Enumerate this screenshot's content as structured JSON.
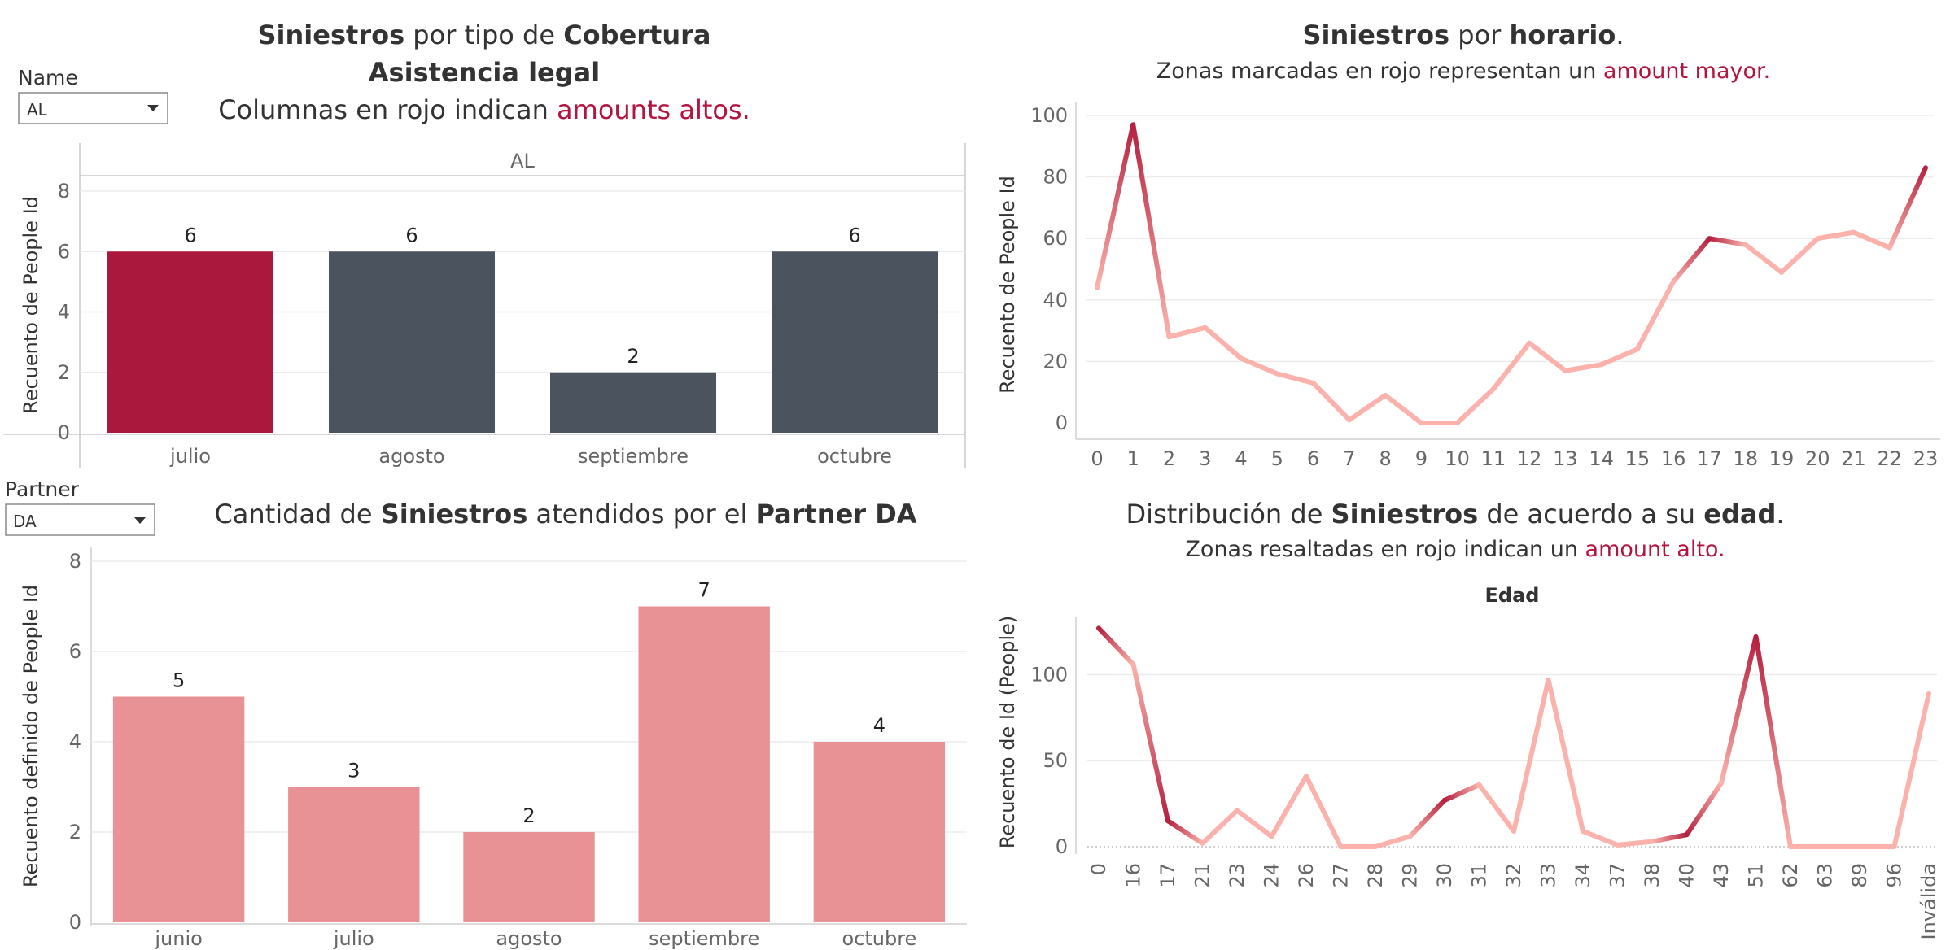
{
  "colors": {
    "highlight_bar": "#ab183d",
    "neutral_bar": "#4a535e",
    "partner_bar": "#e89295",
    "line_light": "#fbb2ac",
    "line_dark": "#b5213f",
    "accent_text": "#b3153f"
  },
  "filters": {
    "name": {
      "label": "Name",
      "value": "AL"
    },
    "partner": {
      "label": "Partner",
      "value": "DA"
    }
  },
  "chart_data": [
    {
      "id": "coverage",
      "type": "bar",
      "title_parts": [
        "Siniestros",
        " por tipo de ",
        "Cobertura"
      ],
      "subtitle": "Asistencia legal",
      "note_parts": [
        "Columnas en rojo indican ",
        "amounts altos."
      ],
      "facet_label": "AL",
      "categories": [
        "julio",
        "agosto",
        "septiembre",
        "octubre"
      ],
      "values": [
        6,
        6,
        2,
        6
      ],
      "highlight": [
        true,
        false,
        false,
        false
      ],
      "ylabel": "Recuento de People Id",
      "ylim": [
        0,
        8
      ],
      "yticks": [
        0,
        2,
        4,
        6,
        8
      ]
    },
    {
      "id": "hourly",
      "type": "line",
      "title_parts": [
        "Siniestros",
        " por ",
        "horario",
        "."
      ],
      "note_parts": [
        "Zonas marcadas en rojo representan un ",
        "amount mayor."
      ],
      "x": [
        "0",
        "1",
        "2",
        "3",
        "4",
        "5",
        "6",
        "7",
        "8",
        "9",
        "10",
        "11",
        "12",
        "13",
        "14",
        "15",
        "16",
        "17",
        "18",
        "19",
        "20",
        "21",
        "22",
        "23"
      ],
      "values": [
        44,
        97,
        28,
        31,
        21,
        16,
        13,
        1,
        9,
        0,
        0,
        11,
        26,
        17,
        19,
        24,
        46,
        60,
        58,
        49,
        60,
        62,
        57,
        83
      ],
      "ylabel": "Recuento de People Id",
      "ylim": [
        0,
        100
      ],
      "yticks": [
        0,
        20,
        40,
        60,
        80,
        100
      ]
    },
    {
      "id": "partner",
      "type": "bar",
      "title_parts": [
        "Cantidad de ",
        "Siniestros",
        " atendidos por el ",
        "Partner DA"
      ],
      "categories": [
        "junio",
        "julio",
        "agosto",
        "septiembre",
        "octubre"
      ],
      "values": [
        5,
        3,
        2,
        7,
        4
      ],
      "ylabel": "Recuento definido de People Id",
      "ylim": [
        0,
        8
      ],
      "yticks": [
        0,
        2,
        4,
        6,
        8
      ]
    },
    {
      "id": "age",
      "type": "line",
      "title_parts": [
        "Distribución de ",
        "Siniestros",
        " de acuerdo a su ",
        "edad",
        "."
      ],
      "note_parts": [
        "Zonas resaltadas en rojo indican un ",
        "amount alto."
      ],
      "header": "Edad",
      "x": [
        "0",
        "16",
        "17",
        "21",
        "23",
        "24",
        "26",
        "27",
        "28",
        "29",
        "30",
        "31",
        "32",
        "33",
        "34",
        "37",
        "38",
        "40",
        "43",
        "51",
        "62",
        "63",
        "89",
        "96",
        "Inválida"
      ],
      "values": [
        127,
        106,
        15,
        2,
        21,
        6,
        41,
        0,
        0,
        6,
        27,
        36,
        9,
        97,
        9,
        1,
        3,
        7,
        37,
        122,
        0,
        0,
        0,
        0,
        89
      ],
      "ylabel": "Recuento de Id (People)",
      "ylim": [
        0,
        130
      ],
      "yticks": [
        0,
        50,
        100
      ]
    }
  ]
}
